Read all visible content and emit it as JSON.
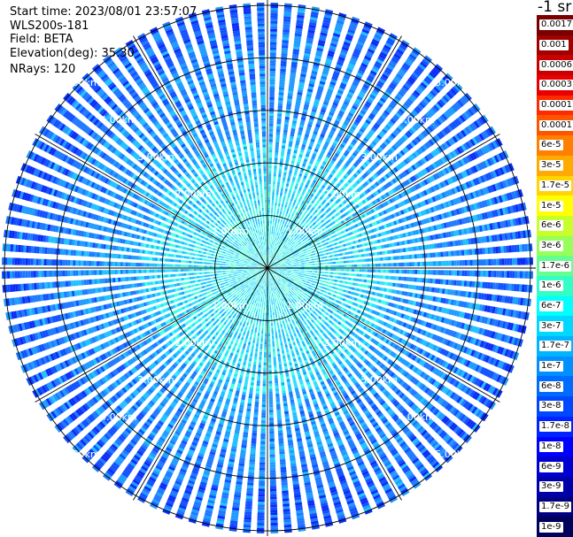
{
  "header": {
    "start_time": "Start time: 2023/08/01 23:57:07",
    "instrument": "WLS200s-181",
    "field": "Field: BETA",
    "elevation": "Elevation(deg): 35.30",
    "nrays": "NRays: 120"
  },
  "colorbar": {
    "unit": "-1 sr",
    "levels": [
      {
        "label": "0.0017",
        "color": "#7a0000"
      },
      {
        "label": "0.001",
        "color": "#a00000"
      },
      {
        "label": "0.0006",
        "color": "#c80000"
      },
      {
        "label": "0.0003",
        "color": "#e80000"
      },
      {
        "label": "0.00017",
        "color": "#ff2a00"
      },
      {
        "label": "0.0001",
        "color": "#ff5500"
      },
      {
        "label": "6e-5",
        "color": "#ff8000"
      },
      {
        "label": "3e-5",
        "color": "#ffaa00"
      },
      {
        "label": "1.7e-5",
        "color": "#ffd400"
      },
      {
        "label": "1e-5",
        "color": "#ffff00"
      },
      {
        "label": "6e-6",
        "color": "#c8ff2a"
      },
      {
        "label": "3e-6",
        "color": "#96ff5a"
      },
      {
        "label": "1.7e-6",
        "color": "#64ff90"
      },
      {
        "label": "1e-6",
        "color": "#33ffc4"
      },
      {
        "label": "6e-7",
        "color": "#00ffff"
      },
      {
        "label": "3e-7",
        "color": "#00d8ff"
      },
      {
        "label": "1.7e-7",
        "color": "#00b4ff"
      },
      {
        "label": "1e-7",
        "color": "#0090ff"
      },
      {
        "label": "6e-8",
        "color": "#006cff"
      },
      {
        "label": "3e-8",
        "color": "#0048ff"
      },
      {
        "label": "1.7e-8",
        "color": "#0024ff"
      },
      {
        "label": "1e-8",
        "color": "#0000ff"
      },
      {
        "label": "6e-9",
        "color": "#0000d0"
      },
      {
        "label": "3e-9",
        "color": "#0000a8"
      },
      {
        "label": "1.7e-9",
        "color": "#000080"
      },
      {
        "label": "1e-9",
        "color": "#00005a"
      }
    ]
  },
  "chart_data": {
    "type": "heatmap",
    "projection": "polar (PPI)",
    "field": "BETA",
    "elevation_deg": 35.3,
    "n_rays": 120,
    "range_rings_km": [
      1,
      2,
      3,
      4,
      5
    ],
    "ring_labels": [
      "1.00km",
      "2.00km",
      "3.00km",
      "4.00km",
      "5.00km"
    ],
    "spokes_deg": [
      0,
      30,
      60,
      90,
      120,
      150,
      180,
      210,
      240,
      270,
      300,
      330
    ],
    "max_range_km": 5.1,
    "dominant_values": "mostly 1e-8 to 1e-6 (blue to cyan), near-range gates higher (cyan/green)"
  }
}
